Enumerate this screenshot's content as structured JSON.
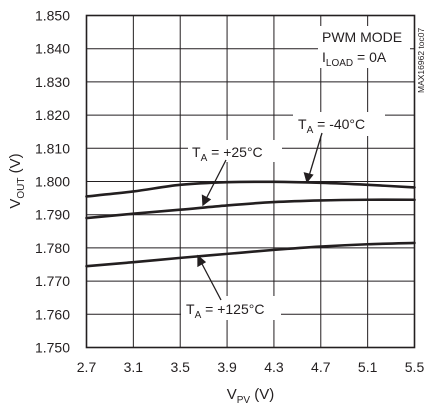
{
  "chart_data": {
    "type": "line",
    "title": "",
    "xlabel": {
      "main": "V",
      "sub": "PV",
      "unit": " (V)"
    },
    "ylabel": {
      "main": "V",
      "sub": "OUT",
      "unit": " (V)"
    },
    "xlim": [
      2.7,
      5.5
    ],
    "ylim": [
      1.75,
      1.85
    ],
    "xticks": [
      "2.7",
      "3.1",
      "3.5",
      "3.9",
      "4.3",
      "4.7",
      "5.1",
      "5.5"
    ],
    "yticks": [
      "1.750",
      "1.760",
      "1.770",
      "1.780",
      "1.790",
      "1.800",
      "1.810",
      "1.820",
      "1.830",
      "1.840",
      "1.850"
    ],
    "grid": true,
    "x": [
      2.7,
      3.1,
      3.5,
      3.9,
      4.3,
      4.7,
      5.1,
      5.5
    ],
    "series": [
      {
        "name": "T_A = -40°C",
        "values": [
          1.7955,
          1.797,
          1.799,
          1.7998,
          1.7999,
          1.7996,
          1.799,
          1.7982
        ]
      },
      {
        "name": "T_A = +25°C",
        "values": [
          1.789,
          1.7903,
          1.7915,
          1.7928,
          1.7938,
          1.7943,
          1.7945,
          1.7945
        ]
      },
      {
        "name": "T_A = +125°C",
        "values": [
          1.7745,
          1.7757,
          1.777,
          1.7782,
          1.7794,
          1.7804,
          1.7811,
          1.7815
        ]
      }
    ],
    "labels": [
      {
        "main": "T",
        "sub": "A",
        "rest": " = -40°C"
      },
      {
        "main": "T",
        "sub": "A",
        "rest": " = +25°C"
      },
      {
        "main": "T",
        "sub": "A",
        "rest": " = +125°C"
      }
    ],
    "condition": {
      "mode": "PWM MODE",
      "load_main": "I",
      "load_sub": "LOAD",
      "load_rest": " = 0A"
    },
    "figure_id": "MAX16962 toc07",
    "line_color": "#231f20"
  }
}
